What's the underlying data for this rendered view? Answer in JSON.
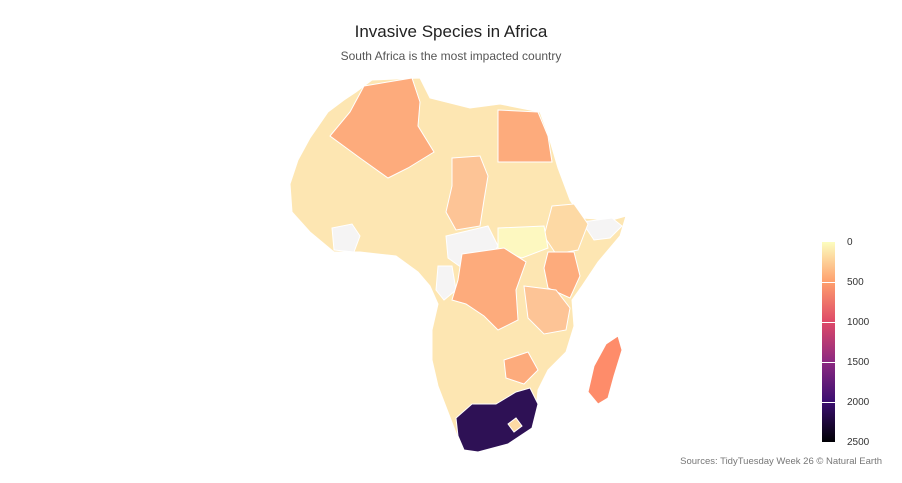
{
  "title": "Invasive Species in Africa",
  "subtitle": "South Africa is the most impacted country",
  "caption": "Sources: TidyTuesday Week 26 © Natural Earth",
  "legend": {
    "labels": [
      "0",
      "500",
      "1000",
      "1500",
      "2000",
      "2500"
    ],
    "colors": [
      "#000004",
      "#3b0f70",
      "#8c2981",
      "#de4968",
      "#fe9f6d",
      "#fcfdbf"
    ]
  },
  "chart_data": {
    "type": "choropleth",
    "value_range": [
      0,
      2500
    ],
    "colorscale": "magma (reversed)",
    "regions": [
      {
        "name": "South Africa",
        "value": 2200
      },
      {
        "name": "Madagascar",
        "value": 560
      },
      {
        "name": "Algeria",
        "value": 380
      },
      {
        "name": "Egypt",
        "value": 360
      },
      {
        "name": "DR Congo",
        "value": 380
      },
      {
        "name": "Kenya",
        "value": 420
      },
      {
        "name": "Chad",
        "value": 300
      },
      {
        "name": "Zimbabwe",
        "value": 300
      }
    ]
  }
}
